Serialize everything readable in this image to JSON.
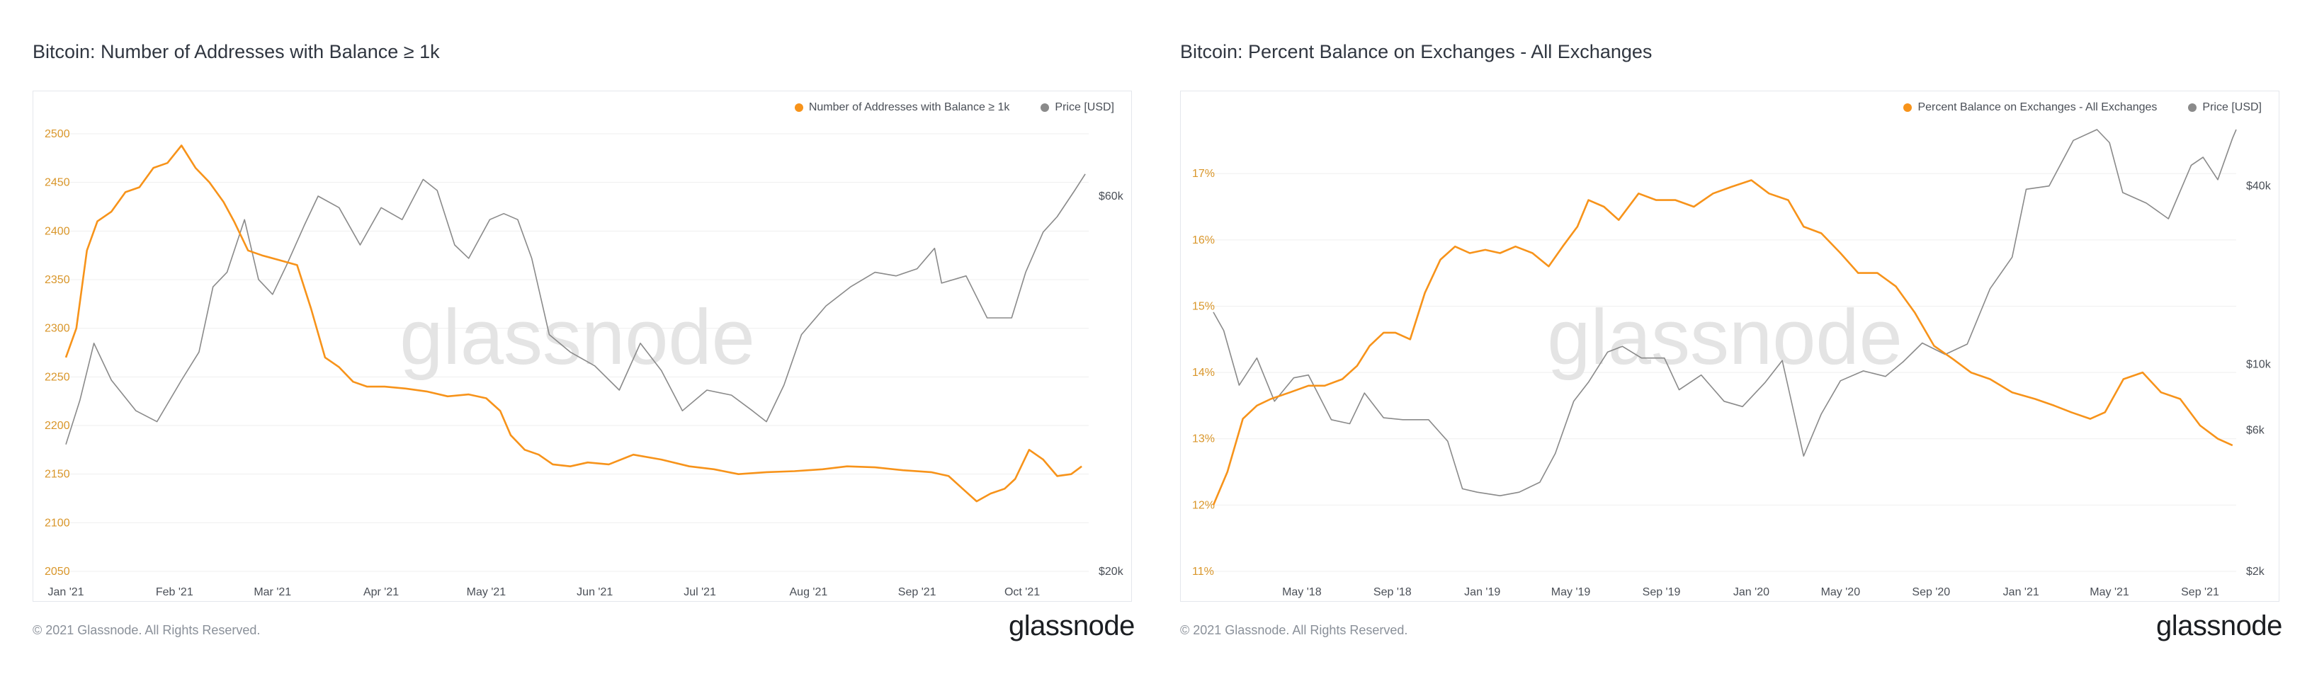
{
  "colors": {
    "accent": "#f7931a",
    "price": "#8a8a8a",
    "grid": "#efefef",
    "axis_left": "#d9962a",
    "axis_text": "#4a4f57"
  },
  "watermark": "glassnode",
  "panels": [
    {
      "title": "Bitcoin: Number of Addresses with Balance ≥ 1k",
      "legend": [
        "Number of Addresses with Balance ≥ 1k",
        "Price [USD]"
      ],
      "footer": "© 2021 Glassnode. All Rights Reserved.",
      "logo": "glassnode"
    },
    {
      "title": "Bitcoin: Percent Balance on Exchanges - All Exchanges",
      "legend": [
        "Percent Balance on Exchanges - All Exchanges",
        "Price [USD]"
      ],
      "footer": "© 2021 Glassnode. All Rights Reserved.",
      "logo": "glassnode"
    }
  ],
  "chart_data": [
    {
      "type": "line",
      "title": "Bitcoin: Number of Addresses with Balance ≥ 1k",
      "x_ticks": [
        "Jan '21",
        "Feb '21",
        "Mar '21",
        "Apr '21",
        "May '21",
        "Jun '21",
        "Jul '21",
        "Aug '21",
        "Sep '21",
        "Oct '21"
      ],
      "x_range": [
        "2021-01-01",
        "2021-10-20"
      ],
      "y_left": {
        "ticks": [
          "2050",
          "2100",
          "2150",
          "2200",
          "2250",
          "2300",
          "2350",
          "2400",
          "2450",
          "2500"
        ],
        "ylim": [
          2050,
          2500
        ]
      },
      "y_right": {
        "scale": "log",
        "ticks": [
          "$20k",
          "$60k"
        ],
        "ylim": [
          20000,
          72000
        ]
      },
      "grid": true,
      "legend_position": "top-right",
      "series": [
        {
          "name": "Number of Addresses with Balance ≥ 1k",
          "axis": "left",
          "x": [
            "2021-01-01",
            "2021-01-04",
            "2021-01-07",
            "2021-01-10",
            "2021-01-14",
            "2021-01-18",
            "2021-01-22",
            "2021-01-26",
            "2021-01-30",
            "2021-02-03",
            "2021-02-07",
            "2021-02-11",
            "2021-02-15",
            "2021-02-18",
            "2021-02-22",
            "2021-02-26",
            "2021-03-03",
            "2021-03-08",
            "2021-03-12",
            "2021-03-16",
            "2021-03-20",
            "2021-03-24",
            "2021-03-28",
            "2021-04-02",
            "2021-04-08",
            "2021-04-14",
            "2021-04-20",
            "2021-04-26",
            "2021-05-01",
            "2021-05-05",
            "2021-05-08",
            "2021-05-12",
            "2021-05-16",
            "2021-05-20",
            "2021-05-25",
            "2021-05-30",
            "2021-06-05",
            "2021-06-12",
            "2021-06-20",
            "2021-06-28",
            "2021-07-05",
            "2021-07-12",
            "2021-07-20",
            "2021-07-28",
            "2021-08-05",
            "2021-08-12",
            "2021-08-20",
            "2021-08-28",
            "2021-09-05",
            "2021-09-10",
            "2021-09-14",
            "2021-09-18",
            "2021-09-22",
            "2021-09-26",
            "2021-09-29",
            "2021-10-03",
            "2021-10-07",
            "2021-10-11",
            "2021-10-15",
            "2021-10-18"
          ],
          "y": [
            2270,
            2300,
            2380,
            2410,
            2420,
            2440,
            2445,
            2465,
            2470,
            2488,
            2465,
            2450,
            2430,
            2410,
            2380,
            2375,
            2370,
            2365,
            2320,
            2270,
            2260,
            2245,
            2240,
            2240,
            2238,
            2235,
            2230,
            2232,
            2228,
            2215,
            2190,
            2175,
            2170,
            2160,
            2158,
            2162,
            2160,
            2170,
            2165,
            2158,
            2155,
            2150,
            2152,
            2153,
            2155,
            2158,
            2157,
            2154,
            2152,
            2148,
            2135,
            2122,
            2130,
            2135,
            2145,
            2175,
            2165,
            2148,
            2150,
            2158
          ]
        },
        {
          "name": "Price [USD]",
          "axis": "right",
          "x": [
            "2021-01-01",
            "2021-01-05",
            "2021-01-09",
            "2021-01-14",
            "2021-01-21",
            "2021-01-27",
            "2021-02-03",
            "2021-02-08",
            "2021-02-12",
            "2021-02-16",
            "2021-02-21",
            "2021-02-25",
            "2021-03-01",
            "2021-03-05",
            "2021-03-10",
            "2021-03-14",
            "2021-03-20",
            "2021-03-26",
            "2021-04-01",
            "2021-04-07",
            "2021-04-13",
            "2021-04-17",
            "2021-04-22",
            "2021-04-26",
            "2021-05-02",
            "2021-05-06",
            "2021-05-10",
            "2021-05-14",
            "2021-05-19",
            "2021-05-25",
            "2021-06-01",
            "2021-06-08",
            "2021-06-14",
            "2021-06-20",
            "2021-06-26",
            "2021-07-03",
            "2021-07-10",
            "2021-07-16",
            "2021-07-20",
            "2021-07-25",
            "2021-07-30",
            "2021-08-06",
            "2021-08-13",
            "2021-08-20",
            "2021-08-26",
            "2021-09-01",
            "2021-09-06",
            "2021-09-08",
            "2021-09-15",
            "2021-09-21",
            "2021-09-28",
            "2021-10-02",
            "2021-10-07",
            "2021-10-11",
            "2021-10-16",
            "2021-10-19"
          ],
          "y": [
            29000,
            33000,
            39000,
            35000,
            32000,
            31000,
            35000,
            38000,
            46000,
            48000,
            56000,
            47000,
            45000,
            49000,
            55000,
            60000,
            58000,
            52000,
            58000,
            56000,
            63000,
            61000,
            52000,
            50000,
            56000,
            57000,
            56000,
            50000,
            40000,
            38000,
            36500,
            34000,
            39000,
            36000,
            32000,
            34000,
            33500,
            32000,
            31000,
            34500,
            40000,
            43500,
            46000,
            48000,
            47500,
            48500,
            51500,
            46500,
            47500,
            42000,
            42000,
            48000,
            54000,
            56500,
            61000,
            64000
          ]
        }
      ]
    },
    {
      "type": "line",
      "title": "Bitcoin: Percent Balance on Exchanges - All Exchanges",
      "x_ticks": [
        "May '18",
        "Sep '18",
        "Jan '19",
        "May '19",
        "Sep '19",
        "Jan '20",
        "May '20",
        "Sep '20",
        "Jan '21",
        "May '21",
        "Sep '21"
      ],
      "x_range": [
        "2018-01-01",
        "2021-10-20"
      ],
      "y_left": {
        "ticks": [
          "11%",
          "12%",
          "13%",
          "14%",
          "15%",
          "16%",
          "17%"
        ],
        "ylim": [
          11,
          17.6
        ]
      },
      "y_right": {
        "scale": "log",
        "ticks": [
          "$2k",
          "$6k",
          "$10k",
          "$40k"
        ],
        "ylim": [
          2000,
          60000
        ]
      },
      "grid": true,
      "legend_position": "top-right",
      "series": [
        {
          "name": "Percent Balance on Exchanges - All Exchanges",
          "axis": "left",
          "x": [
            "2018-01-01",
            "2018-01-20",
            "2018-02-10",
            "2018-03-01",
            "2018-03-20",
            "2018-04-15",
            "2018-05-10",
            "2018-06-01",
            "2018-06-25",
            "2018-07-15",
            "2018-08-01",
            "2018-08-20",
            "2018-09-05",
            "2018-09-25",
            "2018-10-15",
            "2018-11-05",
            "2018-11-25",
            "2018-12-15",
            "2019-01-05",
            "2019-01-25",
            "2019-02-15",
            "2019-03-10",
            "2019-04-01",
            "2019-04-20",
            "2019-05-10",
            "2019-05-25",
            "2019-06-15",
            "2019-07-05",
            "2019-08-01",
            "2019-08-25",
            "2019-09-20",
            "2019-10-15",
            "2019-11-10",
            "2019-12-05",
            "2020-01-01",
            "2020-01-25",
            "2020-02-20",
            "2020-03-12",
            "2020-04-05",
            "2020-05-01",
            "2020-05-25",
            "2020-06-20",
            "2020-07-15",
            "2020-08-10",
            "2020-09-05",
            "2020-10-01",
            "2020-10-25",
            "2020-11-20",
            "2020-12-20",
            "2021-01-20",
            "2021-02-15",
            "2021-03-10",
            "2021-04-05",
            "2021-04-25",
            "2021-05-20",
            "2021-06-15",
            "2021-07-10",
            "2021-08-05",
            "2021-09-01",
            "2021-09-25",
            "2021-10-15"
          ],
          "y": [
            12.0,
            12.5,
            13.3,
            13.5,
            13.6,
            13.7,
            13.8,
            13.8,
            13.9,
            14.1,
            14.4,
            14.6,
            14.6,
            14.5,
            15.2,
            15.7,
            15.9,
            15.8,
            15.85,
            15.8,
            15.9,
            15.8,
            15.6,
            15.9,
            16.2,
            16.6,
            16.5,
            16.3,
            16.7,
            16.6,
            16.6,
            16.5,
            16.7,
            16.8,
            16.9,
            16.7,
            16.6,
            16.2,
            16.1,
            15.8,
            15.5,
            15.5,
            15.3,
            14.9,
            14.4,
            14.2,
            14.0,
            13.9,
            13.7,
            13.6,
            13.5,
            13.4,
            13.3,
            13.4,
            13.9,
            14.0,
            13.7,
            13.6,
            13.2,
            13.0,
            12.9
          ]
        },
        {
          "name": "Price [USD]",
          "axis": "right",
          "x": [
            "2018-01-01",
            "2018-01-15",
            "2018-02-05",
            "2018-03-01",
            "2018-03-25",
            "2018-04-20",
            "2018-05-10",
            "2018-06-10",
            "2018-07-05",
            "2018-07-25",
            "2018-08-20",
            "2018-09-15",
            "2018-10-20",
            "2018-11-15",
            "2018-12-05",
            "2018-12-25",
            "2019-01-25",
            "2019-02-20",
            "2019-03-20",
            "2019-04-10",
            "2019-05-05",
            "2019-05-25",
            "2019-06-20",
            "2019-07-10",
            "2019-08-05",
            "2019-09-05",
            "2019-09-25",
            "2019-10-25",
            "2019-11-25",
            "2019-12-20",
            "2020-01-20",
            "2020-02-12",
            "2020-03-12",
            "2020-04-05",
            "2020-05-01",
            "2020-06-01",
            "2020-07-01",
            "2020-07-25",
            "2020-08-20",
            "2020-09-20",
            "2020-10-20",
            "2020-11-20",
            "2020-12-20",
            "2021-01-08",
            "2021-02-08",
            "2021-03-13",
            "2021-04-14",
            "2021-05-01",
            "2021-05-19",
            "2021-06-20",
            "2021-07-20",
            "2021-08-20",
            "2021-09-05",
            "2021-09-25",
            "2021-10-15",
            "2021-10-20"
          ],
          "y": [
            15000,
            13000,
            8500,
            10500,
            7500,
            9000,
            9200,
            6500,
            6300,
            8000,
            6600,
            6500,
            6500,
            5500,
            3800,
            3700,
            3600,
            3700,
            4000,
            5000,
            7500,
            8700,
            11000,
            11500,
            10500,
            10500,
            8200,
            9200,
            7500,
            7200,
            8700,
            10300,
            4900,
            6800,
            8800,
            9500,
            9100,
            10200,
            11800,
            10800,
            11700,
            18000,
            23000,
            39000,
            40000,
            57000,
            62000,
            56000,
            38000,
            35000,
            31000,
            47000,
            50000,
            42000,
            58000,
            62000
          ]
        }
      ]
    }
  ]
}
